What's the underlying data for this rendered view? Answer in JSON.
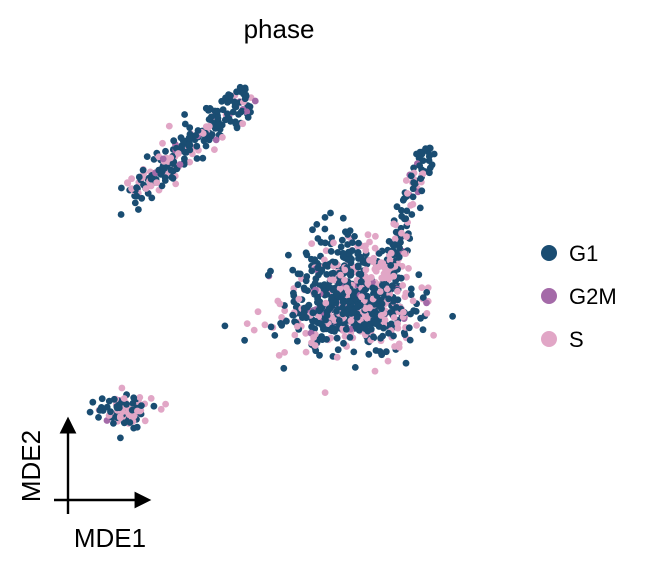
{
  "chart_data": {
    "type": "scatter",
    "title": "phase",
    "xlabel": "MDE1",
    "ylabel": "MDE2",
    "xlim": [
      -1.0,
      1.0
    ],
    "ylim": [
      -1.0,
      1.0
    ],
    "grid": false,
    "legend_position": "right",
    "series": [
      {
        "name": "G1",
        "color": "#1a4d72",
        "clusters": [
          {
            "along": [
              [
                -0.7,
                0.42
              ],
              [
                -0.22,
                0.84
              ]
            ],
            "count": 170,
            "spread": 0.038
          },
          {
            "center": [
              0.21,
              -0.08
            ],
            "spread": [
              0.13,
              0.09
            ],
            "count": 420
          },
          {
            "center": [
              0.18,
              0.12
            ],
            "spread": [
              0.08,
              0.09
            ],
            "count": 95
          },
          {
            "along": [
              [
                0.36,
                0.02
              ],
              [
                0.52,
                0.62
              ]
            ],
            "count": 75,
            "spread": 0.024
          },
          {
            "center": [
              -0.74,
              -0.53
            ],
            "spread": [
              0.055,
              0.035
            ],
            "count": 55
          }
        ]
      },
      {
        "name": "G2M",
        "color": "#a46aa8",
        "clusters": [
          {
            "along": [
              [
                -0.7,
                0.42
              ],
              [
                -0.22,
                0.84
              ]
            ],
            "count": 12,
            "spread": 0.035
          },
          {
            "center": [
              0.21,
              -0.06
            ],
            "spread": [
              0.14,
              0.1
            ],
            "count": 22
          },
          {
            "along": [
              [
                0.36,
                0.05
              ],
              [
                0.52,
                0.6
              ]
            ],
            "count": 5,
            "spread": 0.025
          },
          {
            "center": [
              -0.74,
              -0.53
            ],
            "spread": [
              0.05,
              0.03
            ],
            "count": 3
          }
        ]
      },
      {
        "name": "S",
        "color": "#e1a6c6",
        "clusters": [
          {
            "along": [
              [
                -0.7,
                0.42
              ],
              [
                -0.22,
                0.84
              ]
            ],
            "count": 60,
            "spread": 0.04
          },
          {
            "center": [
              0.22,
              -0.07
            ],
            "spread": [
              0.14,
              0.1
            ],
            "count": 210
          },
          {
            "center": [
              0.3,
              0.1
            ],
            "spread": [
              0.08,
              0.08
            ],
            "count": 50
          },
          {
            "along": [
              [
                0.36,
                0.05
              ],
              [
                0.52,
                0.6
              ]
            ],
            "count": 28,
            "spread": 0.025
          },
          {
            "center": [
              -0.72,
              -0.53
            ],
            "spread": [
              0.055,
              0.035
            ],
            "count": 45
          }
        ]
      }
    ]
  },
  "legend": {
    "items": [
      {
        "label": "G1",
        "color": "#1a4d72"
      },
      {
        "label": "G2M",
        "color": "#a46aa8"
      },
      {
        "label": "S",
        "color": "#e1a6c6"
      }
    ]
  }
}
